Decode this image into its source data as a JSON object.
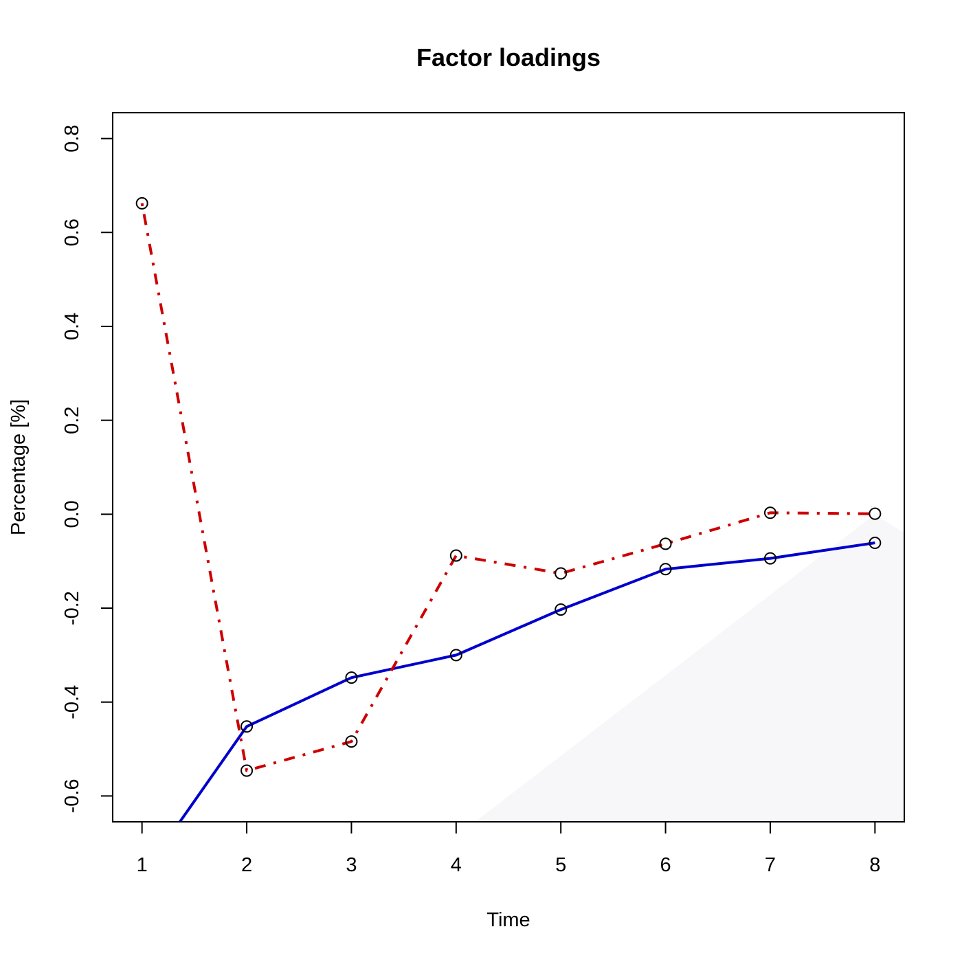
{
  "chart_data": {
    "type": "line",
    "title": "Factor loadings",
    "xlabel": "Time",
    "ylabel": "Percentage [%]",
    "x": [
      1,
      2,
      3,
      4,
      5,
      6,
      7,
      8
    ],
    "xlim": [
      0.72,
      8.28
    ],
    "ylim": [
      -0.655,
      0.855
    ],
    "xticks": [
      "1",
      "2",
      "3",
      "4",
      "5",
      "6",
      "7",
      "8"
    ],
    "yticks": [
      "-0.6",
      "-0.4",
      "-0.2",
      "0.0",
      "0.2",
      "0.4",
      "0.6",
      "0.8"
    ],
    "grid": false,
    "legend": "none",
    "series": [
      {
        "line_style": "solid",
        "color": "#0000CD",
        "values": [
          -0.77,
          -0.452,
          -0.348,
          -0.3,
          -0.203,
          -0.117,
          -0.094,
          -0.061
        ]
      },
      {
        "line_style": "dotdash",
        "color": "#CD0000",
        "values": [
          0.662,
          -0.546,
          -0.484,
          -0.088,
          -0.126,
          -0.063,
          0.003,
          0.001
        ]
      }
    ],
    "point_marker": "open-circle",
    "background_shading": {
      "color": "#F7F7F9",
      "vertices": [
        [
          4.18,
          -0.655
        ],
        [
          8.0,
          0.0
        ],
        [
          8.28,
          -0.04
        ],
        [
          8.28,
          -0.655
        ]
      ]
    }
  }
}
